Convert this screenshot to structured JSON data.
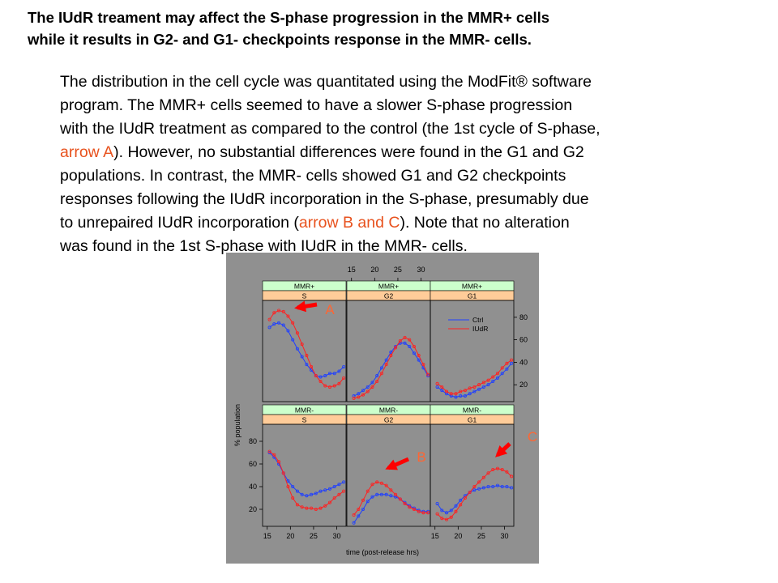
{
  "title": {
    "line1": "The IUdR treament may affect the S-phase progression in the MMR+ cells",
    "line2": "while it results in G2- and G1- checkpoints response in the MMR- cells."
  },
  "body": {
    "l1": "The distribution in the cell cycle was quantitated using the ModFit® software",
    "l2": "program. The MMR+ cells seemed to have a slower S-phase progression",
    "l3": "with the IUdR treatment as compared to the control (the 1st cycle of S-phase,",
    "l4a": "arrow A",
    "l4b": "). However, no substantial differences were found in the G1 and G2",
    "l5": "populations.  In contrast, the MMR- cells showed  G1 and G2 checkpoints",
    "l6": "responses following the IUdR incorporation in the S-phase, presumably due",
    "l7a": "to unrepaired IUdR incorporation (",
    "l7b": "arrow B and C",
    "l7c": "). Note that no alteration",
    "l8": "was found in the 1st S-phase with IUdR in the MMR- cells."
  },
  "colors": {
    "panel_bg": "#909090",
    "strip_top": "#ccffcc",
    "strip_bottom": "#ffcc99",
    "ctrl": "#1f3fff",
    "iudr": "#ff2020",
    "arrow": "#ff0000",
    "arrow_label": "#ff6633"
  },
  "chart_data": {
    "type": "line",
    "xlabel": "time (post-release hrs)",
    "ylabel": "% population",
    "x_ticks": [
      15,
      20,
      25,
      30
    ],
    "y_ticks": [
      20,
      40,
      60,
      80
    ],
    "xlim": [
      14,
      32
    ],
    "ylim": [
      5,
      95
    ],
    "legend": [
      "Ctrl",
      "IUdR"
    ],
    "arrows": [
      "A",
      "B",
      "C"
    ],
    "x": [
      15.5,
      16.5,
      17.5,
      18.5,
      19.5,
      20.5,
      21.5,
      22.5,
      23.5,
      24.5,
      25.5,
      26.5,
      27.5,
      28.5,
      29.5,
      30.5,
      31.5
    ],
    "panels": [
      {
        "strip1": "MMR+",
        "strip2": "S",
        "ctrl": [
          71,
          74,
          75,
          73,
          68,
          60,
          52,
          45,
          38,
          33,
          28,
          27,
          28,
          30,
          30,
          32,
          36
        ],
        "iudr": [
          78,
          84,
          86,
          85,
          81,
          75,
          66,
          56,
          46,
          36,
          28,
          23,
          19,
          18,
          19,
          21,
          26
        ]
      },
      {
        "strip1": "MMR+",
        "strip2": "G2",
        "ctrl": [
          10,
          12,
          15,
          18,
          22,
          28,
          35,
          42,
          49,
          54,
          57,
          57,
          54,
          48,
          42,
          35,
          28
        ],
        "iudr": [
          8,
          9,
          11,
          14,
          18,
          23,
          30,
          38,
          46,
          53,
          59,
          62,
          60,
          54,
          46,
          38,
          29
        ]
      },
      {
        "strip1": "MMR+",
        "strip2": "G1",
        "ctrl": [
          18,
          15,
          12,
          10,
          9,
          10,
          10,
          12,
          14,
          16,
          18,
          20,
          23,
          26,
          30,
          34,
          39
        ],
        "iudr": [
          21,
          18,
          14,
          12,
          12,
          14,
          15,
          17,
          18,
          20,
          22,
          24,
          27,
          30,
          35,
          39,
          42
        ]
      },
      {
        "strip1": "MMR-",
        "strip2": "S",
        "ctrl": [
          70,
          66,
          60,
          52,
          45,
          40,
          36,
          33,
          32,
          33,
          34,
          36,
          37,
          38,
          40,
          42,
          44
        ],
        "iudr": [
          71,
          68,
          62,
          52,
          40,
          30,
          24,
          22,
          21,
          21,
          20,
          21,
          23,
          26,
          30,
          33,
          36
        ]
      },
      {
        "strip1": "MMR-",
        "strip2": "G2",
        "ctrl": [
          8,
          14,
          20,
          27,
          31,
          33,
          33,
          33,
          32,
          31,
          29,
          26,
          23,
          21,
          19,
          18,
          18
        ],
        "iudr": [
          15,
          20,
          28,
          36,
          42,
          44,
          43,
          41,
          37,
          33,
          29,
          25,
          22,
          20,
          18,
          17,
          17
        ]
      },
      {
        "strip1": "MMR-",
        "strip2": "G1",
        "ctrl": [
          25,
          19,
          17,
          19,
          23,
          28,
          32,
          35,
          37,
          38,
          39,
          40,
          40,
          41,
          40,
          40,
          39
        ],
        "iudr": [
          16,
          12,
          11,
          13,
          18,
          24,
          30,
          35,
          40,
          44,
          48,
          52,
          55,
          56,
          55,
          53,
          49
        ]
      }
    ]
  }
}
